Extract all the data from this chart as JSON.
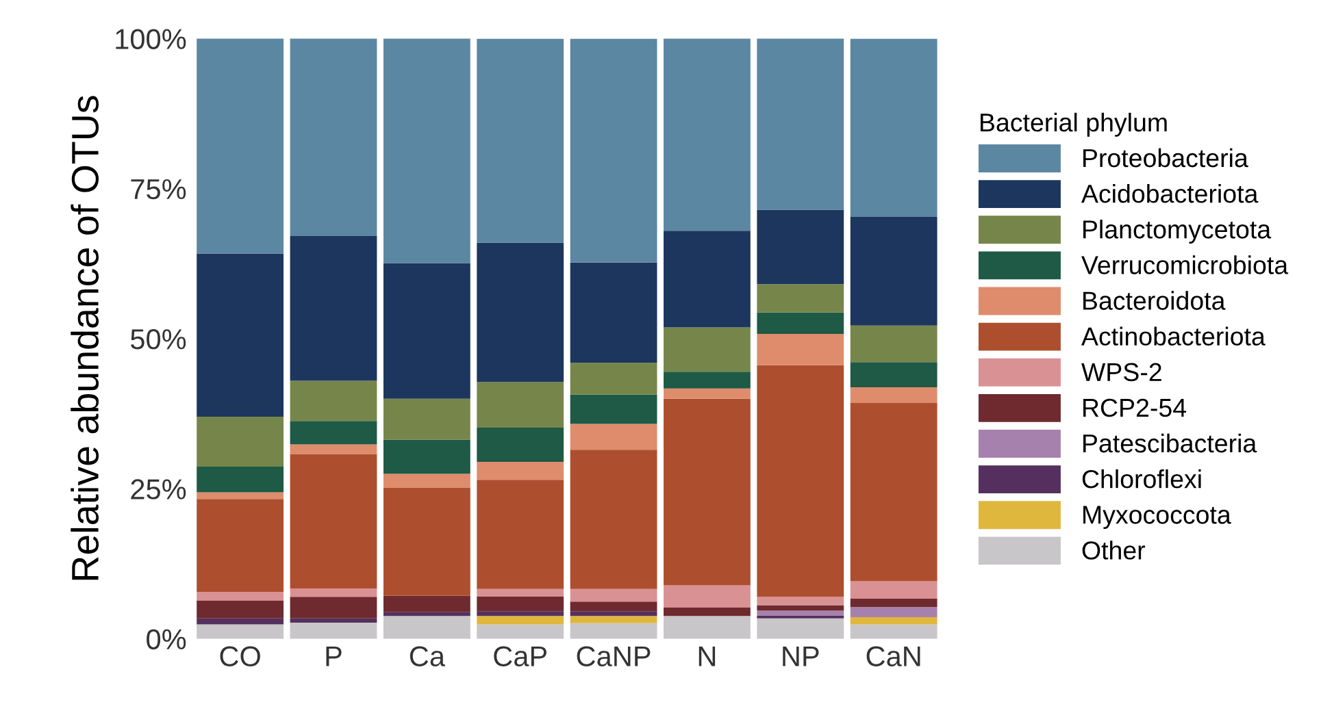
{
  "chart_data": {
    "type": "bar",
    "stacked": true,
    "ylabel": "Relative abundance of OTUs",
    "legend_title": "Bacterial phylum",
    "legend": "right",
    "grid": false,
    "categories": [
      "CO",
      "P",
      "Ca",
      "CaP",
      "CaNP",
      "N",
      "NP",
      "CaN"
    ],
    "ylim": [
      0,
      100
    ],
    "yticks": [
      {
        "value": 0,
        "label": "0%"
      },
      {
        "value": 25,
        "label": "25%"
      },
      {
        "value": 50,
        "label": "50%"
      },
      {
        "value": 75,
        "label": "75%"
      },
      {
        "value": 100,
        "label": "100%"
      }
    ],
    "series": [
      {
        "name": "Other",
        "color": "#c8c6c8",
        "values": [
          2.4,
          2.7,
          3.8,
          2.4,
          2.6,
          3.8,
          3.4,
          2.4
        ]
      },
      {
        "name": "Myxococcota",
        "color": "#e0b73d",
        "values": [
          0,
          0,
          0,
          1.4,
          1.2,
          0,
          0,
          1.2
        ]
      },
      {
        "name": "Chloroflexi",
        "color": "#55305e",
        "values": [
          1.0,
          0.7,
          0.7,
          0.8,
          0.8,
          0,
          0.5,
          0
        ]
      },
      {
        "name": "Patescibacteria",
        "color": "#a781ad",
        "values": [
          0,
          0,
          0,
          0,
          0,
          0,
          0.8,
          1.7
        ]
      },
      {
        "name": "RCP2-54",
        "color": "#6e2a2e",
        "values": [
          3.0,
          3.6,
          2.7,
          2.5,
          1.6,
          1.4,
          0.9,
          1.4
        ]
      },
      {
        "name": "WPS-2",
        "color": "#da9194",
        "values": [
          1.4,
          1.4,
          0,
          1.2,
          2.1,
          3.7,
          1.4,
          2.9
        ]
      },
      {
        "name": "Actinobacteriota",
        "color": "#ad4f2e",
        "values": [
          15.5,
          22.4,
          18.0,
          18.2,
          23.2,
          31.1,
          38.6,
          29.7
        ]
      },
      {
        "name": "Bacteroidota",
        "color": "#de8c6c",
        "values": [
          1.1,
          1.6,
          2.3,
          3.0,
          4.3,
          1.7,
          5.2,
          2.6
        ]
      },
      {
        "name": "Verrucomicrobiota",
        "color": "#1e5a45",
        "values": [
          4.3,
          3.9,
          5.7,
          5.7,
          4.9,
          2.8,
          3.6,
          4.2
        ]
      },
      {
        "name": "Planctomycetota",
        "color": "#76864a",
        "values": [
          8.3,
          6.7,
          6.8,
          7.6,
          5.3,
          7.4,
          4.7,
          6.1
        ]
      },
      {
        "name": "Acidobacteriota",
        "color": "#1c365e",
        "values": [
          27.2,
          24.1,
          22.6,
          23.2,
          16.7,
          16.1,
          12.4,
          18.1
        ]
      },
      {
        "name": "Proteobacteria",
        "color": "#5b87a3",
        "values": [
          35.9,
          33.0,
          37.5,
          34.0,
          37.3,
          32.1,
          28.6,
          29.7
        ]
      }
    ]
  }
}
